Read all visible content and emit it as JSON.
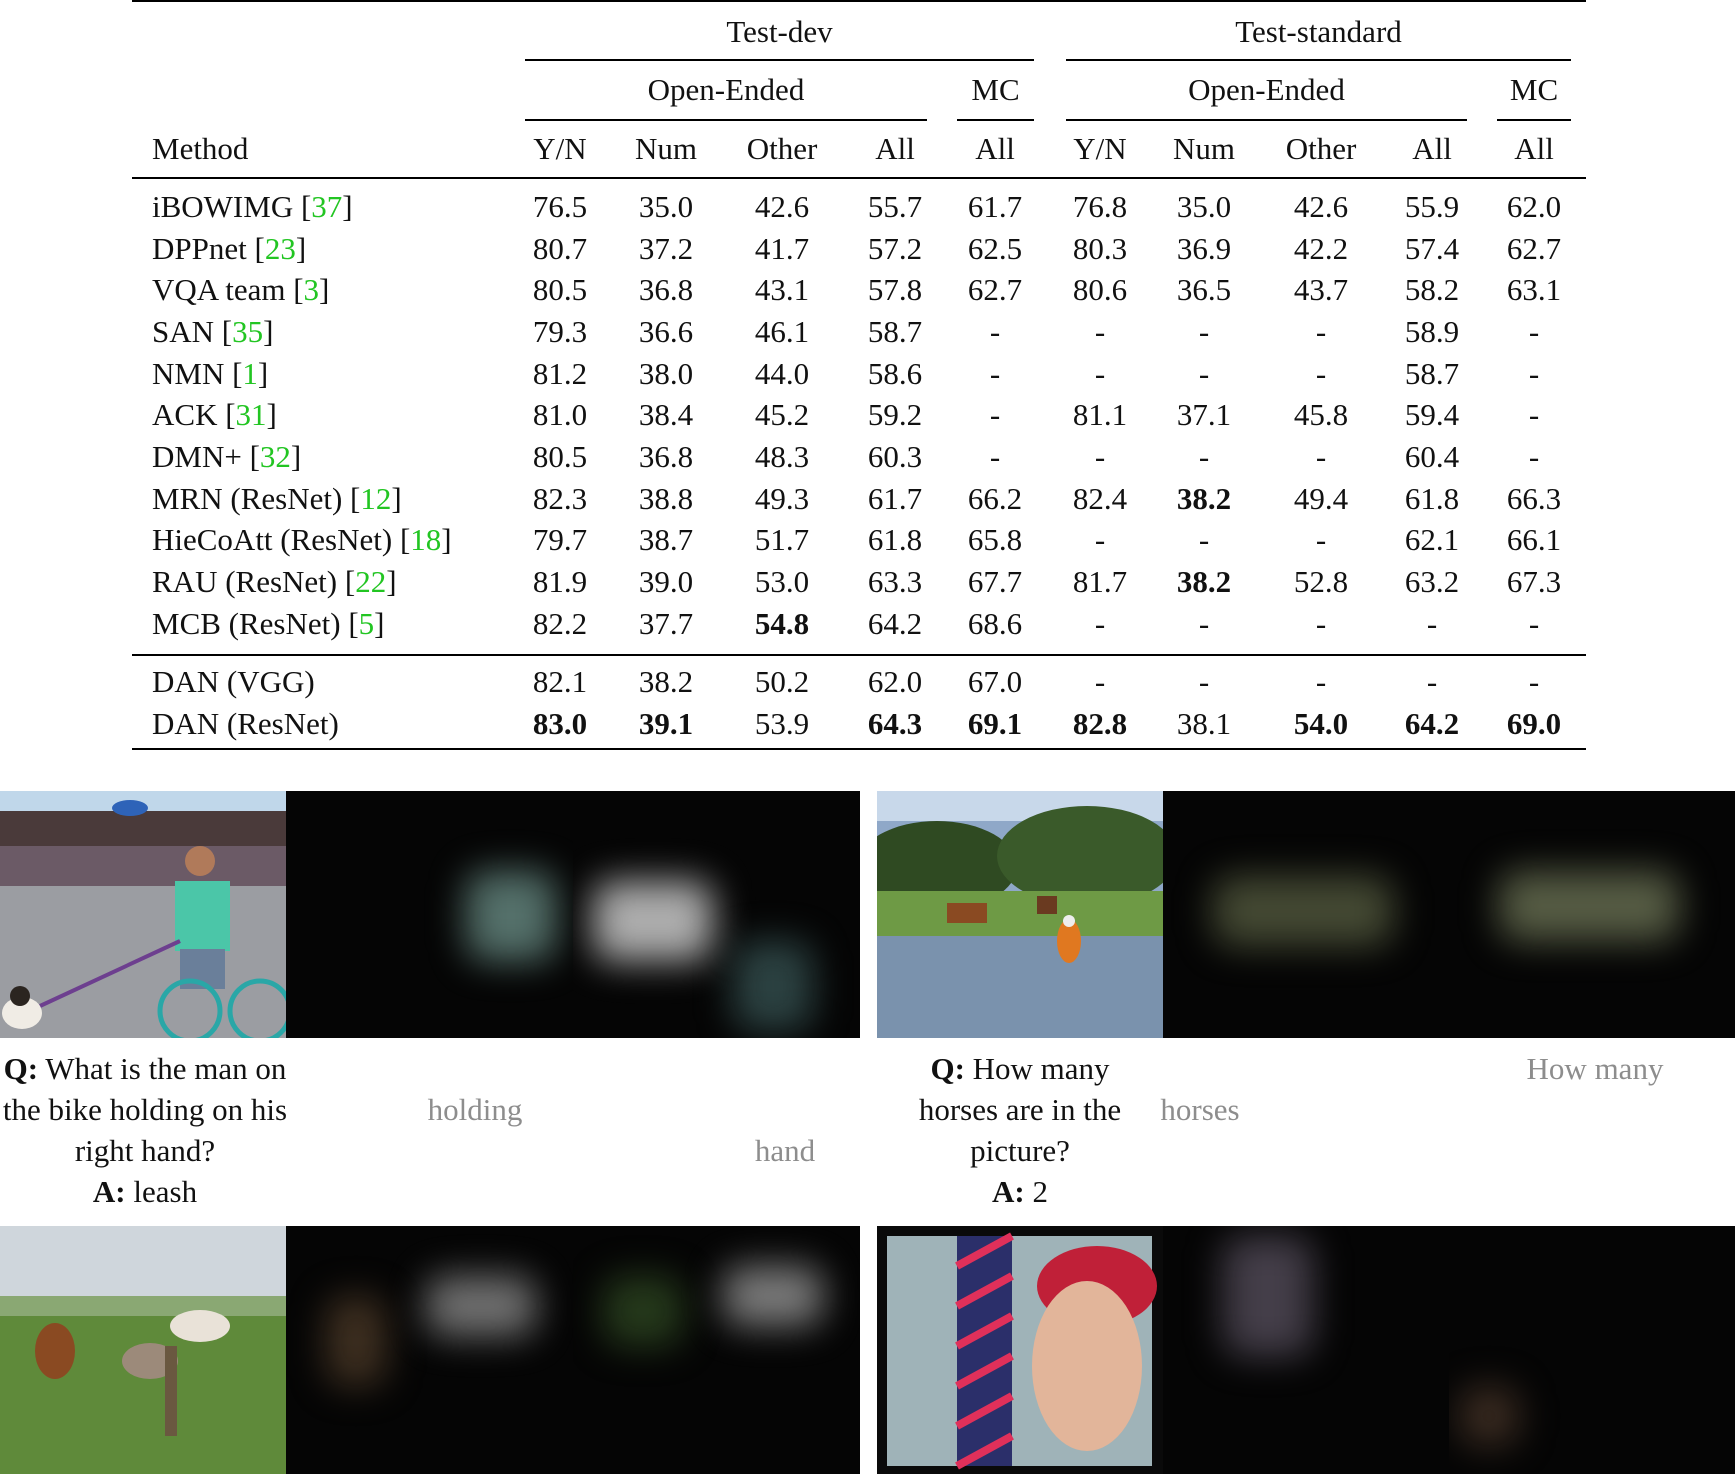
{
  "table": {
    "group_headers": [
      "Test-dev",
      "Test-standard"
    ],
    "sub_headers": [
      "Open-Ended",
      "MC",
      "Open-Ended",
      "MC"
    ],
    "columns": [
      "Method",
      "Y/N",
      "Num",
      "Other",
      "All",
      "All",
      "Y/N",
      "Num",
      "Other",
      "All",
      "All"
    ],
    "rows": [
      {
        "name": "iBOWIMG",
        "cite": "37",
        "values": [
          "76.5",
          "35.0",
          "42.6",
          "55.7",
          "61.7",
          "76.8",
          "35.0",
          "42.6",
          "55.9",
          "62.0"
        ],
        "bold": []
      },
      {
        "name": "DPPnet",
        "cite": "23",
        "values": [
          "80.7",
          "37.2",
          "41.7",
          "57.2",
          "62.5",
          "80.3",
          "36.9",
          "42.2",
          "57.4",
          "62.7"
        ],
        "bold": []
      },
      {
        "name": "VQA team",
        "cite": "3",
        "values": [
          "80.5",
          "36.8",
          "43.1",
          "57.8",
          "62.7",
          "80.6",
          "36.5",
          "43.7",
          "58.2",
          "63.1"
        ],
        "bold": []
      },
      {
        "name": "SAN",
        "cite": "35",
        "values": [
          "79.3",
          "36.6",
          "46.1",
          "58.7",
          "-",
          "-",
          "-",
          "-",
          "58.9",
          "-"
        ],
        "bold": []
      },
      {
        "name": "NMN",
        "cite": "1",
        "values": [
          "81.2",
          "38.0",
          "44.0",
          "58.6",
          "-",
          "-",
          "-",
          "-",
          "58.7",
          "-"
        ],
        "bold": []
      },
      {
        "name": "ACK",
        "cite": "31",
        "values": [
          "81.0",
          "38.4",
          "45.2",
          "59.2",
          "-",
          "81.1",
          "37.1",
          "45.8",
          "59.4",
          "-"
        ],
        "bold": []
      },
      {
        "name": "DMN+",
        "cite": "32",
        "values": [
          "80.5",
          "36.8",
          "48.3",
          "60.3",
          "-",
          "-",
          "-",
          "-",
          "60.4",
          "-"
        ],
        "bold": []
      },
      {
        "name": "MRN (ResNet)",
        "cite": "12",
        "values": [
          "82.3",
          "38.8",
          "49.3",
          "61.7",
          "66.2",
          "82.4",
          "38.2",
          "49.4",
          "61.8",
          "66.3"
        ],
        "bold": [
          6
        ]
      },
      {
        "name": "HieCoAtt (ResNet)",
        "cite": "18",
        "values": [
          "79.7",
          "38.7",
          "51.7",
          "61.8",
          "65.8",
          "-",
          "-",
          "-",
          "62.1",
          "66.1"
        ],
        "bold": []
      },
      {
        "name": "RAU (ResNet)",
        "cite": "22",
        "values": [
          "81.9",
          "39.0",
          "53.0",
          "63.3",
          "67.7",
          "81.7",
          "38.2",
          "52.8",
          "63.2",
          "67.3"
        ],
        "bold": [
          6
        ]
      },
      {
        "name": "MCB (ResNet)",
        "cite": "5",
        "values": [
          "82.2",
          "37.7",
          "54.8",
          "64.2",
          "68.6",
          "-",
          "-",
          "-",
          "-",
          "-"
        ],
        "bold": [
          2
        ]
      },
      {
        "name": "DAN (VGG)",
        "cite": "",
        "values": [
          "82.1",
          "38.2",
          "50.2",
          "62.0",
          "67.0",
          "-",
          "-",
          "-",
          "-",
          "-"
        ],
        "bold": []
      },
      {
        "name": "DAN (ResNet)",
        "cite": "",
        "values": [
          "83.0",
          "39.1",
          "53.9",
          "64.3",
          "69.1",
          "82.8",
          "38.1",
          "54.0",
          "64.2",
          "69.0"
        ],
        "bold": [
          0,
          1,
          3,
          4,
          5,
          7,
          8,
          9
        ]
      }
    ]
  },
  "figure": {
    "examples": [
      {
        "q_label": "Q:",
        "question": "What is the man on the bike holding on his right hand?",
        "a_label": "A:",
        "answer": "leash",
        "step1_strong": "holding",
        "step2_strong": "hand"
      },
      {
        "q_label": "Q:",
        "question": "How many horses are in the picture?",
        "a_label": "A:",
        "answer": "2",
        "step1_strong": "horses",
        "step2_strong": "How many"
      }
    ]
  },
  "colors": {
    "citation": "#22c522",
    "attention_background": "#050505"
  }
}
